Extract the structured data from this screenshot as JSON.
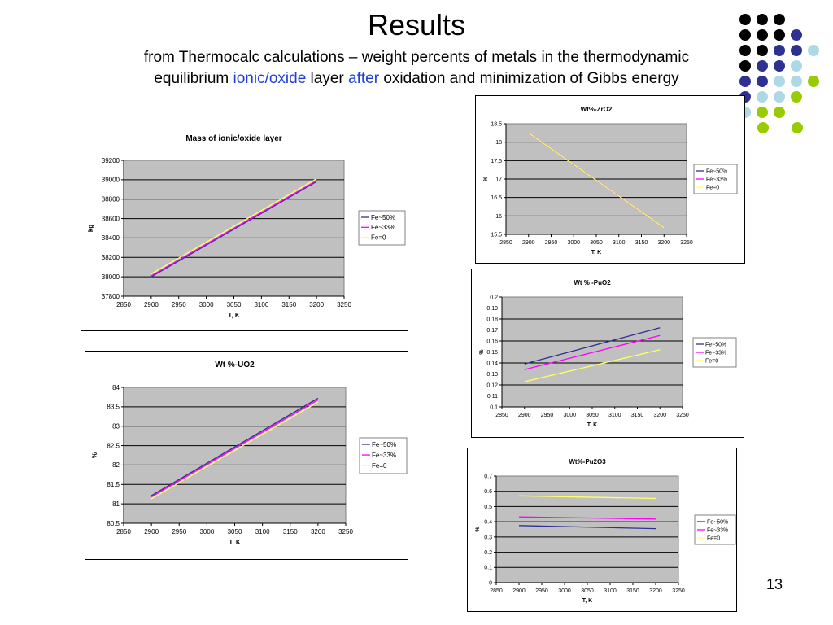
{
  "slide": {
    "title": "Results",
    "subtitle_line1": "from Thermocalc calculations – weight percents of metals in the thermodynamic",
    "subtitle_line2_a": "equilibrium ",
    "subtitle_line2_b": "ionic/oxide",
    "subtitle_line2_c": " layer ",
    "subtitle_line2_d": "after",
    "subtitle_line2_e": " oxidation and minimization of Gibbs energy",
    "page_number": "13",
    "dot_colors": [
      "#000000",
      "#2e3192",
      "#add8e6",
      "#99cc00"
    ]
  },
  "chart_data": [
    {
      "type": "line",
      "title": "Mass of ionic/oxide layer",
      "xlabel": "T, K",
      "ylabel": "kg",
      "xlim": [
        2850,
        3250
      ],
      "ylim": [
        37800,
        39200
      ],
      "xticks": [
        2850,
        2900,
        2950,
        3000,
        3050,
        3100,
        3150,
        3200,
        3250
      ],
      "yticks": [
        37800,
        38000,
        38200,
        38400,
        38600,
        38800,
        39000,
        39200
      ],
      "grid": true,
      "legend_position": "right",
      "series": [
        {
          "name": "Fe~50%",
          "color": "#2e3192",
          "x": [
            2900,
            3200
          ],
          "y": [
            38000,
            38980
          ]
        },
        {
          "name": "Fe~33%",
          "color": "#ff00ff",
          "x": [
            2900,
            3200
          ],
          "y": [
            38010,
            38990
          ]
        },
        {
          "name": "Fe=0",
          "color": "#ffff66",
          "x": [
            2900,
            3200
          ],
          "y": [
            38030,
            39010
          ]
        }
      ]
    },
    {
      "type": "line",
      "title": "Wt %-UO2",
      "xlabel": "T, K",
      "ylabel": "%",
      "xlim": [
        2850,
        3250
      ],
      "ylim": [
        80.5,
        84
      ],
      "xticks": [
        2850,
        2900,
        2950,
        3000,
        3050,
        3100,
        3150,
        3200,
        3250
      ],
      "yticks": [
        80.5,
        81,
        81.5,
        82,
        82.5,
        83,
        83.5,
        84
      ],
      "grid": true,
      "legend_position": "right",
      "series": [
        {
          "name": "Fe~50%",
          "color": "#2e3192",
          "x": [
            2900,
            3200
          ],
          "y": [
            81.21,
            83.72
          ]
        },
        {
          "name": "Fe~33%",
          "color": "#ff00ff",
          "x": [
            2900,
            3200
          ],
          "y": [
            81.18,
            83.68
          ]
        },
        {
          "name": "Fe=0",
          "color": "#ffff66",
          "x": [
            2900,
            3200
          ],
          "y": [
            81.13,
            83.62
          ]
        }
      ]
    },
    {
      "type": "line",
      "title": "Wt%-ZrO2",
      "xlabel": "T, K",
      "ylabel": "%",
      "xlim": [
        2850,
        3250
      ],
      "ylim": [
        15.5,
        18.5
      ],
      "xticks": [
        2850,
        2900,
        2950,
        3000,
        3050,
        3100,
        3150,
        3200,
        3250
      ],
      "yticks": [
        15.5,
        16,
        16.5,
        17,
        17.5,
        18,
        18.5
      ],
      "grid": true,
      "legend_position": "right",
      "series": [
        {
          "name": "Fe~50%",
          "color": "#2e3192",
          "x": [
            2900,
            3200
          ],
          "y": [
            18.25,
            15.68
          ]
        },
        {
          "name": "Fe~33%",
          "color": "#ff00ff",
          "x": [
            2900,
            3200
          ],
          "y": [
            18.25,
            15.68
          ]
        },
        {
          "name": "Fe=0",
          "color": "#ffff66",
          "x": [
            2900,
            3200
          ],
          "y": [
            18.25,
            15.68
          ]
        }
      ]
    },
    {
      "type": "line",
      "title": "Wt % -PuO2",
      "xlabel": "T, K",
      "ylabel": "%",
      "xlim": [
        2850,
        3250
      ],
      "ylim": [
        0.1,
        0.2
      ],
      "xticks": [
        2850,
        2900,
        2950,
        3000,
        3050,
        3100,
        3150,
        3200,
        3250
      ],
      "yticks": [
        0.1,
        0.11,
        0.12,
        0.13,
        0.14,
        0.15,
        0.16,
        0.17,
        0.18,
        0.19,
        0.2
      ],
      "grid": true,
      "legend_position": "right",
      "series": [
        {
          "name": "Fe~50%",
          "color": "#2e3192",
          "x": [
            2900,
            3200
          ],
          "y": [
            0.139,
            0.172
          ]
        },
        {
          "name": "Fe~33%",
          "color": "#ff00ff",
          "x": [
            2900,
            3200
          ],
          "y": [
            0.134,
            0.165
          ]
        },
        {
          "name": "Fe=0",
          "color": "#ffff66",
          "x": [
            2900,
            3200
          ],
          "y": [
            0.123,
            0.152
          ]
        }
      ]
    },
    {
      "type": "line",
      "title": "Wt%-Pu2O3",
      "xlabel": "T, K",
      "ylabel": "%",
      "xlim": [
        2850,
        3250
      ],
      "ylim": [
        0,
        0.7
      ],
      "xticks": [
        2850,
        2900,
        2950,
        3000,
        3050,
        3100,
        3150,
        3200,
        3250
      ],
      "yticks": [
        0,
        0.1,
        0.2,
        0.3,
        0.4,
        0.5,
        0.6,
        0.7
      ],
      "grid": true,
      "legend_position": "right",
      "series": [
        {
          "name": "Fe~50%",
          "color": "#2e3192",
          "x": [
            2900,
            3200
          ],
          "y": [
            0.375,
            0.355
          ]
        },
        {
          "name": "Fe~33%",
          "color": "#ff00ff",
          "x": [
            2900,
            3200
          ],
          "y": [
            0.432,
            0.418
          ]
        },
        {
          "name": "Fe=0",
          "color": "#ffff66",
          "x": [
            2900,
            3200
          ],
          "y": [
            0.57,
            0.553
          ]
        }
      ]
    }
  ]
}
